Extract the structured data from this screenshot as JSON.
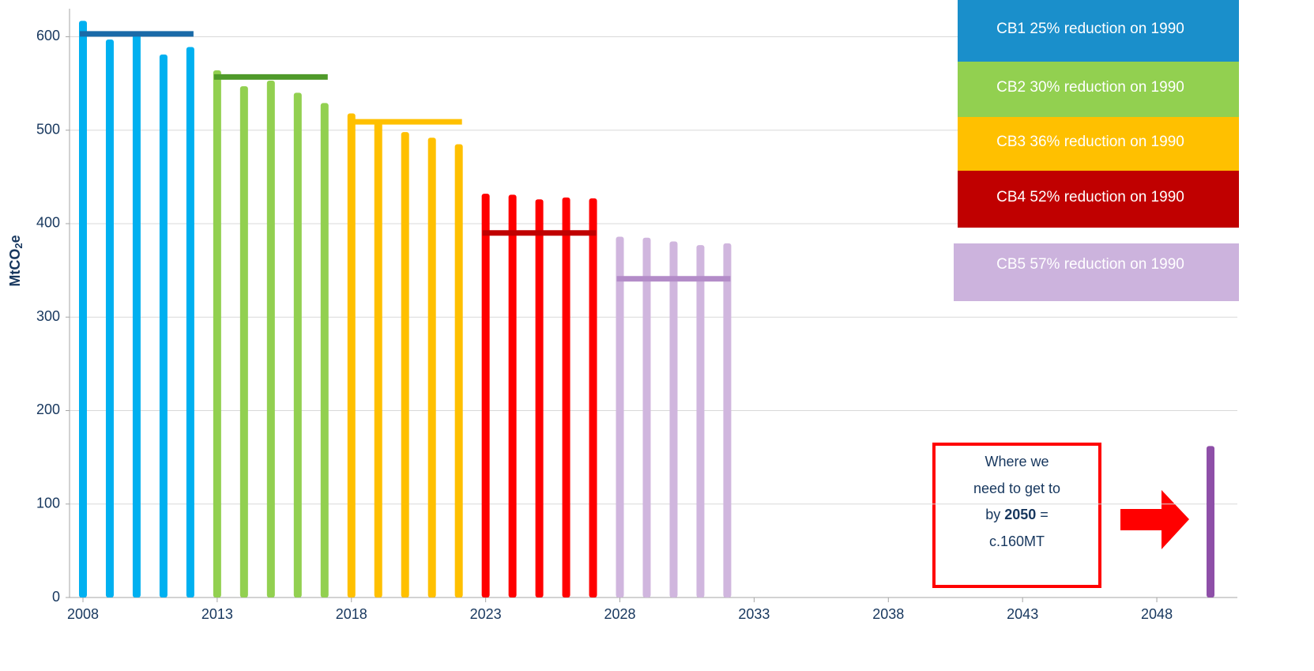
{
  "chart_data": {
    "type": "bar",
    "y_label": [
      "MtCO",
      "2",
      "e"
    ],
    "xlim": [
      2007.5,
      2051
    ],
    "xticks": [
      2008,
      2013,
      2018,
      2023,
      2028,
      2033,
      2038,
      2043,
      2048
    ],
    "ylim": [
      0,
      630
    ],
    "yticks": [
      0,
      100,
      200,
      300,
      400,
      500,
      600
    ],
    "grid": true,
    "legend": "top-right",
    "series": [
      {
        "name": "CB1 25% reduction on 1990",
        "color": "#00b0f0",
        "budget_color": "#1a6aa8",
        "legend_color": "#1a8fcb",
        "x": [
          2008,
          2009,
          2010,
          2011,
          2012
        ],
        "values": [
          617,
          597,
          605,
          581,
          589
        ],
        "budget": 603
      },
      {
        "name": "CB2 30% reduction on 1990",
        "color": "#92d050",
        "budget_color": "#4f9a2a",
        "legend_color": "#92d050",
        "x": [
          2013,
          2014,
          2015,
          2016,
          2017
        ],
        "values": [
          564,
          547,
          553,
          540,
          529
        ],
        "budget": 557
      },
      {
        "name": "CB3 36% reduction on 1990",
        "color": "#ffc000",
        "budget_color": "#ffc000",
        "legend_color": "#ffc000",
        "x": [
          2018,
          2019,
          2020,
          2021,
          2022
        ],
        "values": [
          518,
          508,
          498,
          492,
          485
        ],
        "budget": 509
      },
      {
        "name": "CB4 52% reduction on 1990",
        "color": "#ff0000",
        "budget_color": "#c00000",
        "legend_color": "#c00000",
        "x": [
          2023,
          2024,
          2025,
          2026,
          2027
        ],
        "values": [
          432,
          431,
          426,
          428,
          427
        ],
        "budget": 390
      },
      {
        "name": "CB5 57% reduction on 1990",
        "color": "#d0b6de",
        "budget_color": "#b38cc8",
        "legend_color": "#ccb3dd",
        "x": [
          2028,
          2029,
          2030,
          2031,
          2032
        ],
        "values": [
          386,
          385,
          381,
          377,
          379
        ],
        "budget": 341
      }
    ],
    "target": {
      "x": 2050,
      "value": 162,
      "color": "#8e4fa8"
    },
    "annotation": {
      "line1": "Where we",
      "line2": "need to get to",
      "pre": "by",
      "year": "2050",
      "post": "=",
      "line4": "c.160MT"
    }
  }
}
